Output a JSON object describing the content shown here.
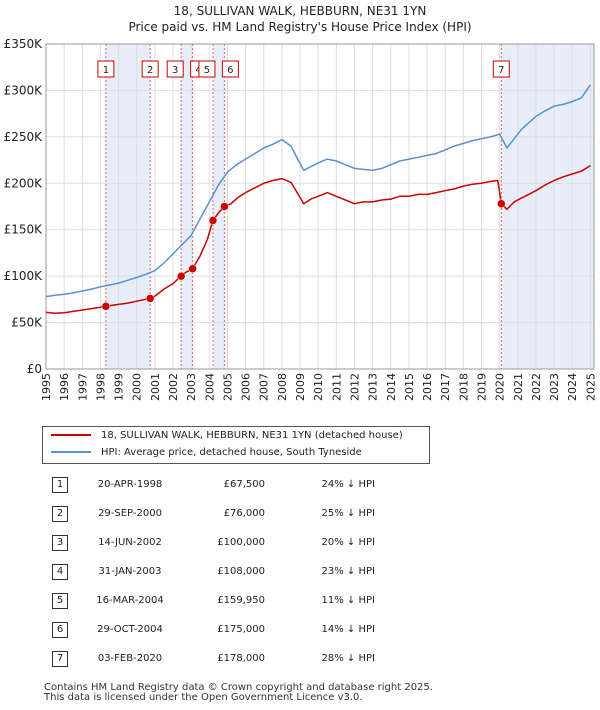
{
  "title_line1": "18, SULLIVAN WALK, HEBBURN, NE31 1YN",
  "title_line2": "Price paid vs. HM Land Registry's House Price Index (HPI)",
  "chart_data": {
    "type": "line",
    "title": "18, SULLIVAN WALK, HEBBURN, NE31 1YN",
    "subtitle": "Price paid vs. HM Land Registry's House Price Index (HPI)",
    "xlabel": "",
    "ylabel": "",
    "xlim": [
      1995,
      2025.2
    ],
    "ylim": [
      0,
      350000
    ],
    "y_ticks": [
      {
        "value": 0,
        "label": "£0"
      },
      {
        "value": 50000,
        "label": "£50K"
      },
      {
        "value": 100000,
        "label": "£100K"
      },
      {
        "value": 150000,
        "label": "£150K"
      },
      {
        "value": 200000,
        "label": "£200K"
      },
      {
        "value": 250000,
        "label": "£250K"
      },
      {
        "value": 300000,
        "label": "£300K"
      },
      {
        "value": 350000,
        "label": "£350K"
      }
    ],
    "x_ticks": [
      "1995",
      "1996",
      "1997",
      "1998",
      "1999",
      "2000",
      "2001",
      "2002",
      "2003",
      "2004",
      "2005",
      "2006",
      "2007",
      "2008",
      "2009",
      "2010",
      "2011",
      "2012",
      "2013",
      "2014",
      "2015",
      "2016",
      "2017",
      "2018",
      "2019",
      "2020",
      "2021",
      "2022",
      "2023",
      "2024",
      "2025"
    ],
    "grid": true,
    "legend_position": "bottom-left",
    "series": [
      {
        "name": "18, SULLIVAN WALK, HEBBURN, NE31 1YN (detached house)",
        "color": "#cc0000",
        "x": [
          1995.0,
          1995.5,
          1996.0,
          1996.5,
          1997.0,
          1997.5,
          1998.0,
          1998.3,
          1998.8,
          1999.5,
          2000.0,
          2000.74,
          2001.0,
          2001.5,
          2002.0,
          2002.45,
          2002.7,
          2003.08,
          2003.5,
          2003.9,
          2004.2,
          2004.5,
          2004.83,
          2005.2,
          2005.6,
          2006.0,
          2006.5,
          2007.0,
          2007.5,
          2008.0,
          2008.5,
          2008.9,
          2009.2,
          2009.6,
          2010.0,
          2010.5,
          2011.0,
          2011.5,
          2012.0,
          2012.5,
          2013.0,
          2013.5,
          2014.0,
          2014.5,
          2015.0,
          2015.5,
          2016.0,
          2016.5,
          2017.0,
          2017.5,
          2018.0,
          2018.5,
          2019.0,
          2019.5,
          2019.9,
          2020.09,
          2020.4,
          2020.8,
          2021.2,
          2021.6,
          2022.0,
          2022.5,
          2023.0,
          2023.5,
          2024.0,
          2024.5,
          2025.0
        ],
        "values": [
          61000,
          60000,
          60500,
          62000,
          63500,
          65000,
          66500,
          67500,
          69000,
          71000,
          73000,
          76000,
          78500,
          86000,
          92000,
          100000,
          104000,
          108000,
          122000,
          140000,
          159950,
          168000,
          175000,
          178000,
          185000,
          190000,
          195000,
          200000,
          203000,
          205000,
          201000,
          188000,
          178000,
          183000,
          186000,
          190000,
          186000,
          182000,
          178000,
          180000,
          180000,
          182000,
          183000,
          186000,
          186000,
          188000,
          188000,
          190000,
          192000,
          194000,
          197000,
          199000,
          200000,
          202000,
          203000,
          178000,
          172000,
          180000,
          184000,
          188000,
          192000,
          198000,
          203000,
          207000,
          210000,
          213000,
          219000
        ]
      },
      {
        "name": "HPI: Average price, detached house, South Tyneside",
        "color": "#5b8fd4",
        "x": [
          1995.0,
          1995.5,
          1996.0,
          1996.5,
          1997.0,
          1997.5,
          1998.0,
          1998.5,
          1999.0,
          1999.5,
          2000.0,
          2000.5,
          2001.0,
          2001.5,
          2002.0,
          2002.5,
          2003.0,
          2003.5,
          2004.0,
          2004.5,
          2005.0,
          2005.5,
          2006.0,
          2006.5,
          2007.0,
          2007.5,
          2008.0,
          2008.5,
          2008.9,
          2009.2,
          2009.6,
          2010.0,
          2010.5,
          2011.0,
          2011.5,
          2012.0,
          2012.5,
          2013.0,
          2013.5,
          2014.0,
          2014.5,
          2015.0,
          2015.5,
          2016.0,
          2016.5,
          2017.0,
          2017.5,
          2018.0,
          2018.5,
          2019.0,
          2019.5,
          2020.0,
          2020.4,
          2020.8,
          2021.2,
          2021.6,
          2022.0,
          2022.5,
          2023.0,
          2023.5,
          2024.0,
          2024.5,
          2025.0
        ],
        "values": [
          78000,
          79500,
          80500,
          82000,
          84000,
          86000,
          88500,
          90500,
          92500,
          95500,
          98500,
          102000,
          106000,
          114000,
          124000,
          134000,
          144000,
          162000,
          180000,
          198000,
          212000,
          220000,
          226000,
          232000,
          238000,
          242000,
          247000,
          240000,
          225000,
          214000,
          218000,
          222000,
          226000,
          224000,
          220000,
          216000,
          215000,
          214000,
          216000,
          220000,
          224000,
          226000,
          228000,
          230000,
          232000,
          236000,
          240000,
          243000,
          246000,
          248000,
          250000,
          253000,
          238000,
          248000,
          258000,
          265000,
          272000,
          278000,
          283000,
          285000,
          288000,
          292000,
          306000
        ]
      }
    ],
    "sales": [
      {
        "n": "1",
        "x": 1998.3,
        "price": 67500
      },
      {
        "n": "2",
        "x": 2000.74,
        "price": 76000
      },
      {
        "n": "3",
        "x": 2002.45,
        "price": 100000
      },
      {
        "n": "4",
        "x": 2003.08,
        "price": 108000
      },
      {
        "n": "5",
        "x": 2004.2,
        "price": 159950
      },
      {
        "n": "6",
        "x": 2004.83,
        "price": 175000
      },
      {
        "n": "7",
        "x": 2020.09,
        "price": 178000
      }
    ],
    "shaded_periods": [
      [
        1998.3,
        2000.74
      ],
      [
        2002.45,
        2003.08
      ],
      [
        2004.2,
        2004.83
      ],
      [
        2020.09,
        2025.2
      ]
    ]
  },
  "legend": {
    "property_label": "18, SULLIVAN WALK, HEBBURN, NE31 1YN (detached house)",
    "hpi_label": "HPI: Average price, detached house, South Tyneside"
  },
  "table": [
    {
      "n": "1",
      "date": "20-APR-1998",
      "price": "£67,500",
      "hpi": "24% ↓ HPI"
    },
    {
      "n": "2",
      "date": "29-SEP-2000",
      "price": "£76,000",
      "hpi": "25% ↓ HPI"
    },
    {
      "n": "3",
      "date": "14-JUN-2002",
      "price": "£100,000",
      "hpi": "20% ↓ HPI"
    },
    {
      "n": "4",
      "date": "31-JAN-2003",
      "price": "£108,000",
      "hpi": "23% ↓ HPI"
    },
    {
      "n": "5",
      "date": "16-MAR-2004",
      "price": "£159,950",
      "hpi": "11% ↓ HPI"
    },
    {
      "n": "6",
      "date": "29-OCT-2004",
      "price": "£175,000",
      "hpi": "14% ↓ HPI"
    },
    {
      "n": "7",
      "date": "03-FEB-2020",
      "price": "£178,000",
      "hpi": "28% ↓ HPI"
    }
  ],
  "footer": {
    "line1": "Contains HM Land Registry data © Crown copyright and database right 2025.",
    "line2": "This data is licensed under the Open Government Licence v3.0."
  },
  "colors": {
    "property": "#cc0000",
    "hpi": "#5b8fd4",
    "shade": "#e8eef9",
    "grid": "#dddddd"
  }
}
